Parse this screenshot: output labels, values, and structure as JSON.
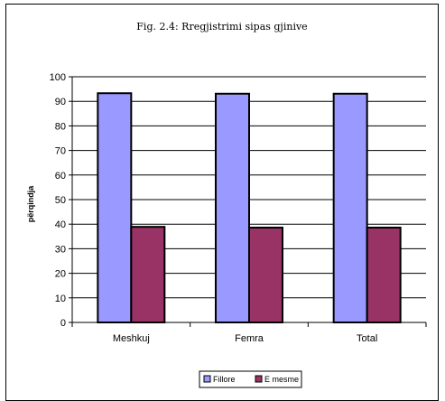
{
  "chart_data": {
    "type": "bar",
    "title": "Fig. 2.4: Rregjistrimi sipas gjinive",
    "xlabel": "",
    "ylabel": "përqindja",
    "ylim": [
      0,
      100
    ],
    "yticks": [
      0,
      10,
      20,
      30,
      40,
      50,
      60,
      70,
      80,
      90,
      100
    ],
    "grid": true,
    "legend_position": "bottom",
    "categories": [
      "Meshkuj",
      "Femra",
      "Total"
    ],
    "series": [
      {
        "name": "Fillore",
        "values": [
          93.3,
          93.1,
          93.1
        ],
        "color": "#9999ff"
      },
      {
        "name": "E mesme",
        "values": [
          38.9,
          38.6,
          38.6
        ],
        "color": "#993366"
      }
    ]
  }
}
